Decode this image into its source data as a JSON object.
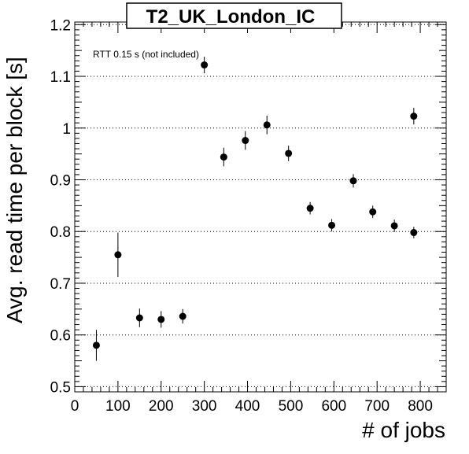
{
  "chart_data": {
    "type": "scatter",
    "title": "T2_UK_London_IC",
    "xlabel": "# of jobs",
    "ylabel": "Avg. read time per block [s]",
    "annotation": "RTT 0.15 s (not included)",
    "xlim": [
      0,
      860
    ],
    "ylim": [
      0.49,
      1.205
    ],
    "x_ticks": [
      0,
      100,
      200,
      300,
      400,
      500,
      600,
      700,
      800
    ],
    "x_tick_labels": [
      "0",
      "100",
      "200",
      "300",
      "400",
      "500",
      "600",
      "700",
      "800"
    ],
    "y_ticks": [
      0.5,
      0.6,
      0.7,
      0.8,
      0.9,
      1.0,
      1.1,
      1.2
    ],
    "y_tick_labels": [
      "0.5",
      "0.6",
      "0.7",
      "0.8",
      "0.9",
      "1",
      "1.1",
      "1.2"
    ],
    "grid": "horizontal dotted",
    "series": [
      {
        "marker": "filled circle",
        "color": "#000000",
        "points": [
          {
            "x": 50,
            "y": 0.58,
            "yerr": 0.03
          },
          {
            "x": 100,
            "y": 0.755,
            "yerr": 0.043
          },
          {
            "x": 150,
            "y": 0.633,
            "yerr": 0.018
          },
          {
            "x": 200,
            "y": 0.63,
            "yerr": 0.016
          },
          {
            "x": 250,
            "y": 0.636,
            "yerr": 0.014
          },
          {
            "x": 300,
            "y": 1.122,
            "yerr": 0.016
          },
          {
            "x": 345,
            "y": 0.944,
            "yerr": 0.018
          },
          {
            "x": 395,
            "y": 0.976,
            "yerr": 0.018
          },
          {
            "x": 445,
            "y": 1.006,
            "yerr": 0.018
          },
          {
            "x": 495,
            "y": 0.951,
            "yerr": 0.015
          },
          {
            "x": 545,
            "y": 0.845,
            "yerr": 0.012
          },
          {
            "x": 595,
            "y": 0.812,
            "yerr": 0.012
          },
          {
            "x": 645,
            "y": 0.898,
            "yerr": 0.013
          },
          {
            "x": 690,
            "y": 0.838,
            "yerr": 0.012
          },
          {
            "x": 740,
            "y": 0.811,
            "yerr": 0.012
          },
          {
            "x": 785,
            "y": 0.798,
            "yerr": 0.011
          },
          {
            "x": 785,
            "y": 1.023,
            "yerr": 0.016
          }
        ]
      }
    ]
  }
}
